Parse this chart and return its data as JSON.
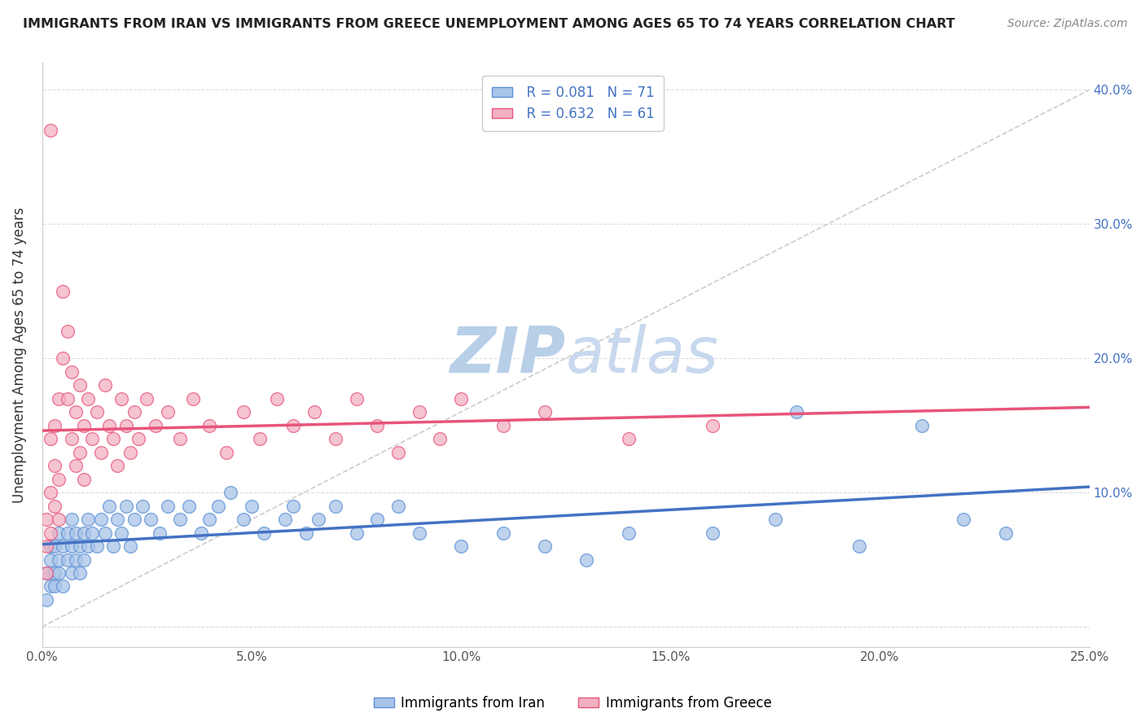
{
  "title": "IMMIGRANTS FROM IRAN VS IMMIGRANTS FROM GREECE UNEMPLOYMENT AMONG AGES 65 TO 74 YEARS CORRELATION CHART",
  "source": "Source: ZipAtlas.com",
  "ylabel": "Unemployment Among Ages 65 to 74 years",
  "xlim": [
    0.0,
    0.25
  ],
  "ylim": [
    -0.015,
    0.42
  ],
  "xticks": [
    0.0,
    0.05,
    0.1,
    0.15,
    0.2,
    0.25
  ],
  "xtick_labels": [
    "0.0%",
    "5.0%",
    "10.0%",
    "15.0%",
    "20.0%",
    "25.0%"
  ],
  "yticks": [
    0.0,
    0.1,
    0.2,
    0.3,
    0.4
  ],
  "ytick_labels_right": [
    "",
    "10.0%",
    "20.0%",
    "30.0%",
    "40.0%"
  ],
  "legend_r1": "R = 0.081",
  "legend_n1": "N = 71",
  "legend_r2": "R = 0.632",
  "legend_n2": "N = 61",
  "blue_color": "#a8c4e8",
  "pink_color": "#f2b0c2",
  "blue_edge_color": "#5b8fd6",
  "pink_edge_color": "#e8547a",
  "blue_line_color": "#4472c4",
  "pink_line_color": "#e8547a",
  "title_color": "#222222",
  "source_color": "#888888",
  "watermark_color": "#ccd9ee",
  "iran_x": [
    0.001,
    0.001,
    0.002,
    0.002,
    0.002,
    0.003,
    0.003,
    0.003,
    0.004,
    0.004,
    0.004,
    0.005,
    0.005,
    0.006,
    0.006,
    0.007,
    0.007,
    0.007,
    0.008,
    0.008,
    0.009,
    0.009,
    0.01,
    0.01,
    0.011,
    0.011,
    0.012,
    0.013,
    0.014,
    0.015,
    0.016,
    0.017,
    0.018,
    0.019,
    0.02,
    0.021,
    0.022,
    0.024,
    0.026,
    0.028,
    0.03,
    0.033,
    0.035,
    0.038,
    0.04,
    0.042,
    0.045,
    0.048,
    0.05,
    0.053,
    0.058,
    0.06,
    0.063,
    0.066,
    0.07,
    0.075,
    0.08,
    0.085,
    0.09,
    0.1,
    0.11,
    0.12,
    0.13,
    0.14,
    0.16,
    0.175,
    0.195,
    0.22,
    0.23,
    0.18,
    0.21
  ],
  "iran_y": [
    0.02,
    0.04,
    0.03,
    0.05,
    0.06,
    0.04,
    0.06,
    0.03,
    0.05,
    0.07,
    0.04,
    0.06,
    0.03,
    0.05,
    0.07,
    0.06,
    0.04,
    0.08,
    0.05,
    0.07,
    0.06,
    0.04,
    0.07,
    0.05,
    0.06,
    0.08,
    0.07,
    0.06,
    0.08,
    0.07,
    0.09,
    0.06,
    0.08,
    0.07,
    0.09,
    0.06,
    0.08,
    0.09,
    0.08,
    0.07,
    0.09,
    0.08,
    0.09,
    0.07,
    0.08,
    0.09,
    0.1,
    0.08,
    0.09,
    0.07,
    0.08,
    0.09,
    0.07,
    0.08,
    0.09,
    0.07,
    0.08,
    0.09,
    0.07,
    0.06,
    0.07,
    0.06,
    0.05,
    0.07,
    0.07,
    0.08,
    0.06,
    0.08,
    0.07,
    0.16,
    0.15
  ],
  "greece_x": [
    0.001,
    0.001,
    0.001,
    0.002,
    0.002,
    0.002,
    0.003,
    0.003,
    0.003,
    0.004,
    0.004,
    0.004,
    0.005,
    0.005,
    0.006,
    0.006,
    0.007,
    0.007,
    0.008,
    0.008,
    0.009,
    0.009,
    0.01,
    0.01,
    0.011,
    0.012,
    0.013,
    0.014,
    0.015,
    0.016,
    0.017,
    0.018,
    0.019,
    0.02,
    0.021,
    0.022,
    0.023,
    0.025,
    0.027,
    0.03,
    0.033,
    0.036,
    0.04,
    0.044,
    0.048,
    0.052,
    0.056,
    0.06,
    0.065,
    0.07,
    0.075,
    0.08,
    0.085,
    0.09,
    0.095,
    0.1,
    0.11,
    0.12,
    0.14,
    0.16,
    0.002
  ],
  "greece_y": [
    0.04,
    0.08,
    0.06,
    0.1,
    0.14,
    0.07,
    0.12,
    0.09,
    0.15,
    0.11,
    0.17,
    0.08,
    0.25,
    0.2,
    0.22,
    0.17,
    0.14,
    0.19,
    0.12,
    0.16,
    0.18,
    0.13,
    0.15,
    0.11,
    0.17,
    0.14,
    0.16,
    0.13,
    0.18,
    0.15,
    0.14,
    0.12,
    0.17,
    0.15,
    0.13,
    0.16,
    0.14,
    0.17,
    0.15,
    0.16,
    0.14,
    0.17,
    0.15,
    0.13,
    0.16,
    0.14,
    0.17,
    0.15,
    0.16,
    0.14,
    0.17,
    0.15,
    0.13,
    0.16,
    0.14,
    0.17,
    0.15,
    0.16,
    0.14,
    0.15,
    0.37
  ]
}
